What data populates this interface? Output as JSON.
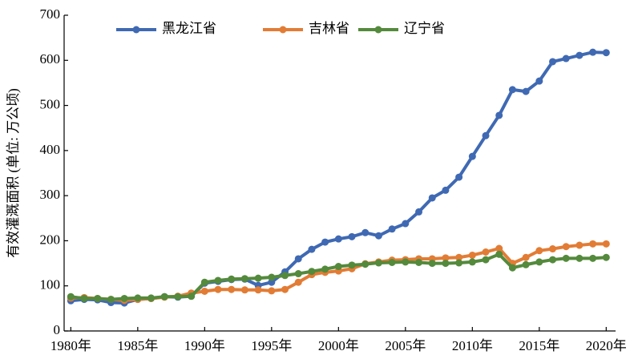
{
  "chart_data": {
    "type": "line",
    "y_label": "有效灌溉面积 (单位: 万公顷)",
    "x": [
      1980,
      1981,
      1982,
      1983,
      1984,
      1985,
      1986,
      1987,
      1988,
      1989,
      1990,
      1991,
      1992,
      1993,
      1994,
      1995,
      1996,
      1997,
      1998,
      1999,
      2000,
      2001,
      2002,
      2003,
      2004,
      2005,
      2006,
      2007,
      2008,
      2009,
      2010,
      2011,
      2012,
      2013,
      2014,
      2015,
      2016,
      2017,
      2018,
      2019,
      2020
    ],
    "series": [
      {
        "name": "黑龙江省",
        "color": "#3f69b3",
        "values": [
          67,
          70,
          69,
          63,
          62,
          70,
          72,
          76,
          75,
          77,
          106,
          110,
          114,
          115,
          101,
          108,
          131,
          160,
          181,
          197,
          204,
          209,
          218,
          211,
          226,
          238,
          264,
          295,
          312,
          341,
          387,
          433,
          478,
          535,
          531,
          554,
          597,
          604,
          611,
          618,
          617
        ]
      },
      {
        "name": "吉林省",
        "color": "#e27c35",
        "values": [
          73,
          74,
          72,
          70,
          68,
          70,
          72,
          75,
          77,
          84,
          88,
          92,
          92,
          91,
          91,
          89,
          92,
          108,
          125,
          130,
          133,
          138,
          149,
          153,
          157,
          158,
          160,
          160,
          162,
          163,
          168,
          175,
          183,
          150,
          163,
          178,
          182,
          187,
          190,
          193,
          193
        ]
      },
      {
        "name": "辽宁省",
        "color": "#548a3c",
        "values": [
          76,
          72,
          72,
          70,
          72,
          73,
          73,
          76,
          76,
          77,
          108,
          112,
          115,
          116,
          117,
          119,
          123,
          127,
          132,
          137,
          143,
          146,
          148,
          151,
          152,
          153,
          152,
          150,
          150,
          151,
          153,
          158,
          170,
          140,
          147,
          153,
          158,
          161,
          161,
          161,
          163
        ]
      }
    ],
    "xlim": [
      1979.5,
      2020.7
    ],
    "xticks": [
      {
        "value": 1980,
        "label": "1980年"
      },
      {
        "value": 1985,
        "label": "1985年"
      },
      {
        "value": 1990,
        "label": "1990年"
      },
      {
        "value": 1995,
        "label": "1995年"
      },
      {
        "value": 2000,
        "label": "2000年"
      },
      {
        "value": 2005,
        "label": "2005年"
      },
      {
        "value": 2010,
        "label": "2010年"
      },
      {
        "value": 2015,
        "label": "2015年"
      },
      {
        "value": 2020,
        "label": "2020年"
      }
    ],
    "ylim": [
      0,
      700
    ],
    "yticks": [
      0,
      100,
      200,
      300,
      400,
      500,
      600,
      700
    ],
    "legend": "top"
  }
}
